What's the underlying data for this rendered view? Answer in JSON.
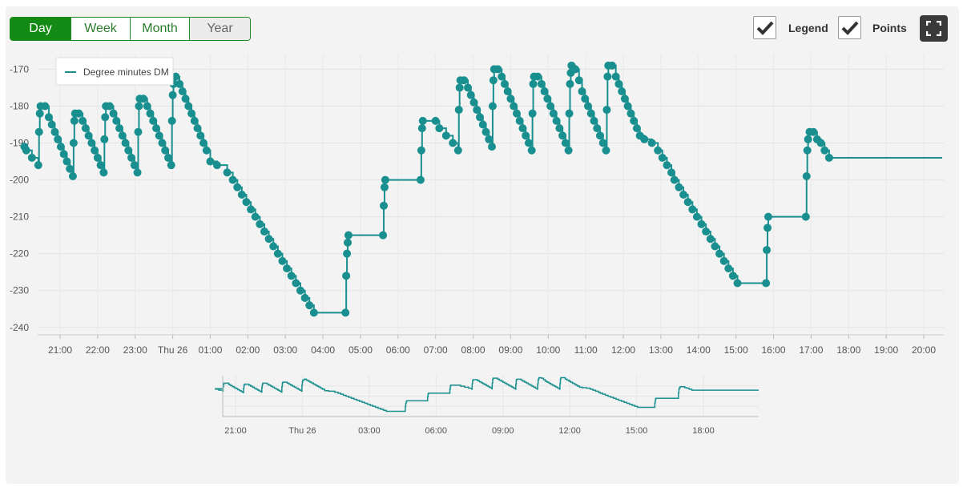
{
  "controls": {
    "ranges": [
      "Day",
      "Week",
      "Month",
      "Year"
    ],
    "active_range": "Day",
    "legend_label": "Legend",
    "legend_checked": true,
    "points_label": "Points",
    "points_checked": true,
    "fullscreen_icon": "fullscreen-icon"
  },
  "colors": {
    "accent": "#138a13",
    "series": "#1a8f8f",
    "panel_bg": "#f3f3f3"
  },
  "chart_data": [
    {
      "type": "line",
      "step": true,
      "show_points": true,
      "legend_position": "top-left",
      "grid": true,
      "ylim": [
        -242,
        -166
      ],
      "yticks": [
        -170,
        -180,
        -190,
        -200,
        -210,
        -220,
        -230,
        -240
      ],
      "x_unit": "hours from 20:00",
      "xlim": [
        0.05,
        24.3
      ],
      "xticks": [
        {
          "x": 1,
          "label": "21:00"
        },
        {
          "x": 2,
          "label": "22:00"
        },
        {
          "x": 3,
          "label": "23:00"
        },
        {
          "x": 4,
          "label": "Thu 26"
        },
        {
          "x": 5,
          "label": "01:00"
        },
        {
          "x": 6,
          "label": "02:00"
        },
        {
          "x": 7,
          "label": "03:00"
        },
        {
          "x": 8,
          "label": "04:00"
        },
        {
          "x": 9,
          "label": "05:00"
        },
        {
          "x": 10,
          "label": "06:00"
        },
        {
          "x": 11,
          "label": "07:00"
        },
        {
          "x": 12,
          "label": "08:00"
        },
        {
          "x": 13,
          "label": "09:00"
        },
        {
          "x": 14,
          "label": "10:00"
        },
        {
          "x": 15,
          "label": "11:00"
        },
        {
          "x": 16,
          "label": "12:00"
        },
        {
          "x": 17,
          "label": "13:00"
        },
        {
          "x": 18,
          "label": "14:00"
        },
        {
          "x": 19,
          "label": "15:00"
        },
        {
          "x": 20,
          "label": "16:00"
        },
        {
          "x": 21,
          "label": "17:00"
        },
        {
          "x": 22,
          "label": "18:00"
        },
        {
          "x": 23,
          "label": "19:00"
        },
        {
          "x": 24,
          "label": "20:00"
        }
      ],
      "series": [
        {
          "name": "Degree minutes DM",
          "points": [
            [
              0.05,
              -191
            ],
            [
              0.1,
              -192
            ],
            [
              0.25,
              -194
            ],
            [
              0.42,
              -196
            ],
            [
              0.44,
              -187
            ],
            [
              0.46,
              -182
            ],
            [
              0.48,
              -180
            ],
            [
              0.6,
              -180
            ],
            [
              0.7,
              -183
            ],
            [
              0.78,
              -185
            ],
            [
              0.86,
              -187
            ],
            [
              0.94,
              -189
            ],
            [
              1.02,
              -191
            ],
            [
              1.1,
              -193
            ],
            [
              1.18,
              -195
            ],
            [
              1.26,
              -197
            ],
            [
              1.34,
              -199
            ],
            [
              1.36,
              -190
            ],
            [
              1.38,
              -184
            ],
            [
              1.4,
              -182
            ],
            [
              1.5,
              -182
            ],
            [
              1.6,
              -184
            ],
            [
              1.68,
              -186
            ],
            [
              1.76,
              -188
            ],
            [
              1.84,
              -190
            ],
            [
              1.92,
              -192
            ],
            [
              2.0,
              -194
            ],
            [
              2.08,
              -196
            ],
            [
              2.16,
              -198
            ],
            [
              2.18,
              -189
            ],
            [
              2.2,
              -183
            ],
            [
              2.22,
              -180
            ],
            [
              2.32,
              -180
            ],
            [
              2.42,
              -182
            ],
            [
              2.5,
              -184
            ],
            [
              2.58,
              -186
            ],
            [
              2.66,
              -188
            ],
            [
              2.74,
              -190
            ],
            [
              2.82,
              -192
            ],
            [
              2.9,
              -194
            ],
            [
              2.98,
              -196
            ],
            [
              3.06,
              -198
            ],
            [
              3.08,
              -187
            ],
            [
              3.1,
              -180
            ],
            [
              3.12,
              -178
            ],
            [
              3.22,
              -178
            ],
            [
              3.32,
              -180
            ],
            [
              3.4,
              -182
            ],
            [
              3.48,
              -184
            ],
            [
              3.56,
              -186
            ],
            [
              3.64,
              -188
            ],
            [
              3.72,
              -190
            ],
            [
              3.8,
              -192
            ],
            [
              3.88,
              -194
            ],
            [
              3.96,
              -196
            ],
            [
              3.98,
              -184
            ],
            [
              4.0,
              -177
            ],
            [
              4.02,
              -174
            ],
            [
              4.08,
              -172
            ],
            [
              4.18,
              -174
            ],
            [
              4.26,
              -176
            ],
            [
              4.34,
              -178
            ],
            [
              4.42,
              -180
            ],
            [
              4.5,
              -182
            ],
            [
              4.58,
              -184
            ],
            [
              4.66,
              -186
            ],
            [
              4.74,
              -188
            ],
            [
              4.82,
              -190
            ],
            [
              4.9,
              -192
            ],
            [
              5.0,
              -195
            ],
            [
              5.18,
              -196
            ],
            [
              5.45,
              -198
            ],
            [
              5.6,
              -200
            ],
            [
              5.72,
              -202
            ],
            [
              5.84,
              -204
            ],
            [
              5.96,
              -206
            ],
            [
              6.08,
              -208
            ],
            [
              6.2,
              -210
            ],
            [
              6.32,
              -212
            ],
            [
              6.44,
              -214
            ],
            [
              6.56,
              -216
            ],
            [
              6.68,
              -218
            ],
            [
              6.8,
              -220
            ],
            [
              6.92,
              -222
            ],
            [
              7.04,
              -224
            ],
            [
              7.16,
              -226
            ],
            [
              7.28,
              -228
            ],
            [
              7.4,
              -230
            ],
            [
              7.52,
              -232
            ],
            [
              7.64,
              -234
            ],
            [
              7.76,
              -236
            ],
            [
              8.6,
              -236
            ],
            [
              8.62,
              -226
            ],
            [
              8.64,
              -220
            ],
            [
              8.66,
              -217
            ],
            [
              8.68,
              -215
            ],
            [
              9.6,
              -215
            ],
            [
              9.62,
              -207
            ],
            [
              9.64,
              -202
            ],
            [
              9.66,
              -200
            ],
            [
              10.6,
              -200
            ],
            [
              10.62,
              -192
            ],
            [
              10.64,
              -186
            ],
            [
              10.66,
              -184
            ],
            [
              11.0,
              -184
            ],
            [
              11.1,
              -186
            ],
            [
              11.28,
              -188
            ],
            [
              11.46,
              -190
            ],
            [
              11.6,
              -192
            ],
            [
              11.62,
              -181
            ],
            [
              11.64,
              -175
            ],
            [
              11.66,
              -173
            ],
            [
              11.76,
              -173
            ],
            [
              11.86,
              -175
            ],
            [
              11.94,
              -177
            ],
            [
              12.02,
              -179
            ],
            [
              12.1,
              -181
            ],
            [
              12.18,
              -183
            ],
            [
              12.26,
              -185
            ],
            [
              12.34,
              -187
            ],
            [
              12.42,
              -189
            ],
            [
              12.5,
              -191
            ],
            [
              12.52,
              -180
            ],
            [
              12.54,
              -173
            ],
            [
              12.56,
              -170
            ],
            [
              12.66,
              -170
            ],
            [
              12.76,
              -172
            ],
            [
              12.84,
              -174
            ],
            [
              12.92,
              -176
            ],
            [
              13.0,
              -178
            ],
            [
              13.08,
              -180
            ],
            [
              13.16,
              -182
            ],
            [
              13.24,
              -184
            ],
            [
              13.32,
              -186
            ],
            [
              13.4,
              -188
            ],
            [
              13.48,
              -190
            ],
            [
              13.56,
              -192
            ],
            [
              13.58,
              -182
            ],
            [
              13.6,
              -174
            ],
            [
              13.62,
              -172
            ],
            [
              13.72,
              -172
            ],
            [
              13.82,
              -174
            ],
            [
              13.9,
              -176
            ],
            [
              13.98,
              -178
            ],
            [
              14.06,
              -180
            ],
            [
              14.14,
              -182
            ],
            [
              14.22,
              -184
            ],
            [
              14.3,
              -186
            ],
            [
              14.38,
              -188
            ],
            [
              14.46,
              -190
            ],
            [
              14.54,
              -192
            ],
            [
              14.56,
              -182
            ],
            [
              14.58,
              -174
            ],
            [
              14.6,
              -171
            ],
            [
              14.62,
              -169
            ],
            [
              14.72,
              -170
            ],
            [
              14.82,
              -173
            ],
            [
              14.9,
              -176
            ],
            [
              14.98,
              -178
            ],
            [
              15.06,
              -180
            ],
            [
              15.14,
              -182
            ],
            [
              15.22,
              -184
            ],
            [
              15.3,
              -186
            ],
            [
              15.38,
              -188
            ],
            [
              15.46,
              -190
            ],
            [
              15.54,
              -192
            ],
            [
              15.56,
              -181
            ],
            [
              15.58,
              -172
            ],
            [
              15.6,
              -169
            ],
            [
              15.7,
              -169
            ],
            [
              15.8,
              -172
            ],
            [
              15.88,
              -174
            ],
            [
              15.96,
              -176
            ],
            [
              16.04,
              -178
            ],
            [
              16.12,
              -180
            ],
            [
              16.2,
              -182
            ],
            [
              16.28,
              -184
            ],
            [
              16.36,
              -186
            ],
            [
              16.44,
              -188
            ],
            [
              16.56,
              -189
            ],
            [
              16.76,
              -190
            ],
            [
              16.92,
              -192
            ],
            [
              17.04,
              -194
            ],
            [
              17.16,
              -196
            ],
            [
              17.28,
              -198
            ],
            [
              17.36,
              -200
            ],
            [
              17.48,
              -202
            ],
            [
              17.6,
              -204
            ],
            [
              17.72,
              -206
            ],
            [
              17.84,
              -208
            ],
            [
              17.96,
              -210
            ],
            [
              18.08,
              -212
            ],
            [
              18.2,
              -214
            ],
            [
              18.32,
              -216
            ],
            [
              18.44,
              -218
            ],
            [
              18.56,
              -220
            ],
            [
              18.68,
              -222
            ],
            [
              18.8,
              -224
            ],
            [
              18.92,
              -226
            ],
            [
              19.04,
              -228
            ],
            [
              19.8,
              -228
            ],
            [
              19.82,
              -219
            ],
            [
              19.84,
              -213
            ],
            [
              19.86,
              -210
            ],
            [
              20.86,
              -210
            ],
            [
              20.88,
              -199
            ],
            [
              20.9,
              -192
            ],
            [
              20.92,
              -189
            ],
            [
              20.96,
              -187
            ],
            [
              21.06,
              -187
            ],
            [
              21.16,
              -189
            ],
            [
              21.26,
              -190
            ],
            [
              21.36,
              -192
            ],
            [
              21.48,
              -194
            ],
            [
              22.0,
              -194
            ]
          ]
        }
      ]
    },
    {
      "type": "line",
      "role": "navigator",
      "ylim": [
        -240,
        -165
      ],
      "xticks": [
        {
          "x": 1,
          "label": "21:00"
        },
        {
          "x": 4,
          "label": "Thu 26"
        },
        {
          "x": 7,
          "label": "03:00"
        },
        {
          "x": 10,
          "label": "06:00"
        },
        {
          "x": 13,
          "label": "09:00"
        },
        {
          "x": 16,
          "label": "12:00"
        },
        {
          "x": 19,
          "label": "15:00"
        },
        {
          "x": 22,
          "label": "18:00"
        }
      ]
    }
  ]
}
